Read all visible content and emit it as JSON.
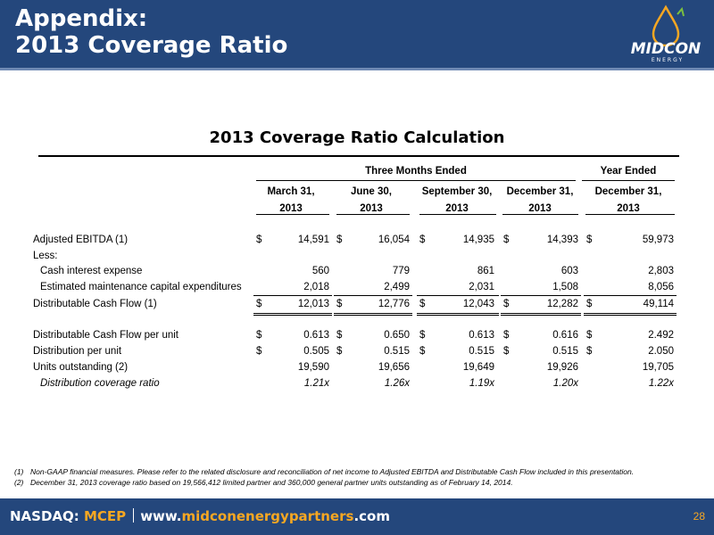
{
  "header": {
    "title": "Appendix:\n2013 Coverage Ratio",
    "logo_text": "MIDCON",
    "logo_subtext": "ENERGY"
  },
  "table": {
    "title": "2013 Coverage Ratio Calculation",
    "group_headers": [
      "Three Months Ended",
      "Year Ended"
    ],
    "columns": [
      {
        "line1": "March 31,",
        "line2": "2013"
      },
      {
        "line1": "June 30,",
        "line2": "2013"
      },
      {
        "line1": "September 30,",
        "line2": "2013"
      },
      {
        "line1": "December 31,",
        "line2": "2013"
      },
      {
        "line1": "December 31,",
        "line2": "2013"
      }
    ],
    "rows": [
      {
        "label": "Adjusted EBITDA (1)",
        "dollar": [
          "$",
          "$",
          "$",
          "$",
          "$"
        ],
        "values": [
          "14,591",
          "16,054",
          "14,935",
          "14,393",
          "59,973"
        ]
      },
      {
        "label": "Less:",
        "dollar": [
          "",
          "",
          "",
          "",
          ""
        ],
        "values": [
          "",
          "",
          "",
          "",
          ""
        ]
      },
      {
        "label": "Cash interest expense",
        "dollar": [
          "",
          "",
          "",
          "",
          ""
        ],
        "values": [
          "560",
          "779",
          "861",
          "603",
          "2,803"
        ]
      },
      {
        "label": "Estimated maintenance capital expenditures",
        "dollar": [
          "",
          "",
          "",
          "",
          ""
        ],
        "values": [
          "2,018",
          "2,499",
          "2,031",
          "1,508",
          "8,056"
        ]
      },
      {
        "label": "Distributable Cash Flow (1)",
        "dollar": [
          "$",
          "$",
          "$",
          "$",
          "$"
        ],
        "values": [
          "12,013",
          "12,776",
          "12,043",
          "12,282",
          "49,114"
        ]
      },
      {
        "label": "Distributable Cash Flow per unit",
        "dollar": [
          "$",
          "$",
          "$",
          "$",
          "$"
        ],
        "values": [
          "0.613",
          "0.650",
          "0.613",
          "0.616",
          "2.492"
        ]
      },
      {
        "label": "Distribution per unit",
        "dollar": [
          "$",
          "$",
          "$",
          "$",
          "$"
        ],
        "values": [
          "0.505",
          "0.515",
          "0.515",
          "0.515",
          "2.050"
        ]
      },
      {
        "label": "Units outstanding (2)",
        "dollar": [
          "",
          "",
          "",
          "",
          ""
        ],
        "values": [
          "19,590",
          "19,656",
          "19,649",
          "19,926",
          "19,705"
        ]
      },
      {
        "label": "Distribution coverage ratio",
        "dollar": [
          "",
          "",
          "",
          "",
          ""
        ],
        "values": [
          "1.21x",
          "1.26x",
          "1.19x",
          "1.20x",
          "1.22x"
        ]
      }
    ]
  },
  "footnotes": [
    {
      "num": "(1)",
      "text": "Non-GAAP financial measures. Please refer to the related disclosure and reconciliation of net income to Adjusted EBITDA and Distributable Cash Flow included in this presentation."
    },
    {
      "num": "(2)",
      "text": "December 31, 2013 coverage ratio based on 19,566,412 limited partner and 360,000 general partner units outstanding as of  February 14, 2014."
    }
  ],
  "footer": {
    "exchange_prefix": "NASDAQ: ",
    "ticker": "MCEP",
    "url_prefix": "www.",
    "url_highlight": "midconenergypartners",
    "url_suffix": ".com",
    "page_number": "28"
  },
  "colors": {
    "header_bg": "#24477c",
    "accent": "#f6a722"
  }
}
